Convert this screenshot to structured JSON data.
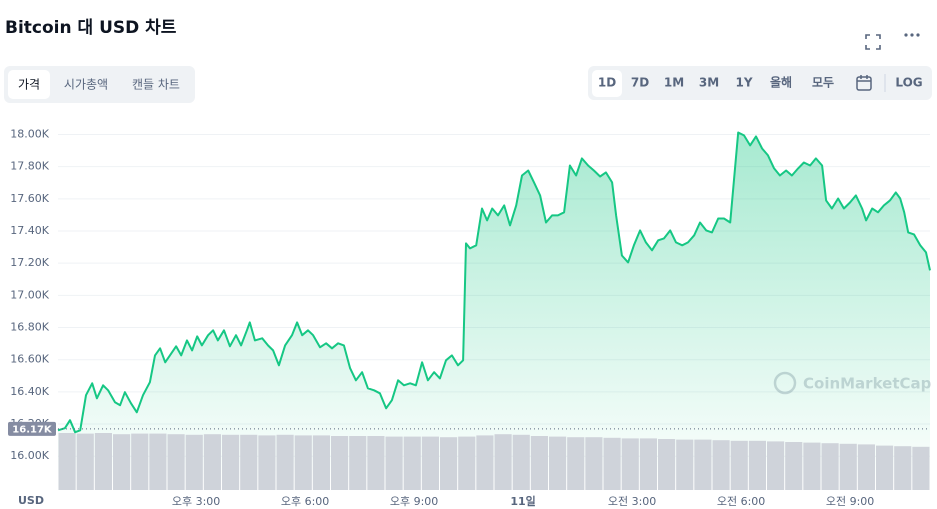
{
  "title": "Bitcoin 대 USD 차트",
  "tabs": [
    "가격",
    "시가총액",
    "캔들 차트"
  ],
  "ranges": [
    "1D",
    "7D",
    "1M",
    "3M",
    "1Y",
    "올해",
    "모두"
  ],
  "log_button": "LOG",
  "chart_data": {
    "type": "area",
    "y_axis_label": "USD",
    "watermark": "CoinMarketCap",
    "grid": true,
    "series": [
      {
        "color": "#16c784",
        "x": [
          11.2,
          11.39,
          11.53,
          11.67,
          11.81,
          11.97,
          12.14,
          12.27,
          12.44,
          12.58,
          12.77,
          12.91,
          13.04,
          13.21,
          13.37,
          13.54,
          13.73,
          13.87,
          14.01,
          14.15,
          14.28,
          14.45,
          14.59,
          14.75,
          14.89,
          15.03,
          15.16,
          15.33,
          15.47,
          15.6,
          15.77,
          15.93,
          16.1,
          16.24,
          16.4,
          16.48,
          16.62,
          16.82,
          16.98,
          17.12,
          17.28,
          17.45,
          17.64,
          17.78,
          17.92,
          18.08,
          18.22,
          18.41,
          18.58,
          18.74,
          18.91,
          19.07,
          19.24,
          19.4,
          19.57,
          19.73,
          19.9,
          20.06,
          20.23,
          20.39,
          20.56,
          20.72,
          20.89,
          21.05,
          21.22,
          21.38,
          21.55,
          21.71,
          21.88,
          22.04,
          22.21,
          22.35,
          22.43,
          22.54,
          22.71,
          22.87,
          23.01,
          23.15,
          23.31,
          23.48,
          23.64,
          23.81,
          23.97,
          24.14,
          24.3,
          24.47,
          24.63,
          24.8,
          24.96,
          25.13,
          25.29,
          25.46,
          25.62,
          25.79,
          25.95,
          26.12,
          26.28,
          26.45,
          26.56,
          26.72,
          26.89,
          27.05,
          27.22,
          27.38,
          27.55,
          27.72,
          27.88,
          28.05,
          28.21,
          28.38,
          28.54,
          28.71,
          28.87,
          29.04,
          29.2,
          29.37,
          29.53,
          29.7,
          29.92,
          30.08,
          30.25,
          30.41,
          30.58,
          30.74,
          30.91,
          31.07,
          31.24,
          31.4,
          31.57,
          31.73,
          31.9,
          32.06,
          32.23,
          32.34,
          32.5,
          32.67,
          32.83,
          33.0,
          33.16,
          33.33,
          33.44,
          33.61,
          33.77,
          33.93,
          34.1,
          34.26,
          34.38,
          34.49,
          34.6,
          34.76,
          34.93,
          35.09,
          35.2
        ],
        "values": [
          16161,
          16174,
          16224,
          16149,
          16161,
          16379,
          16453,
          16360,
          16441,
          16410,
          16335,
          16317,
          16398,
          16329,
          16273,
          16379,
          16460,
          16627,
          16671,
          16584,
          16627,
          16683,
          16627,
          16720,
          16658,
          16745,
          16689,
          16752,
          16783,
          16720,
          16783,
          16683,
          16752,
          16689,
          16783,
          16832,
          16720,
          16733,
          16689,
          16658,
          16565,
          16689,
          16752,
          16832,
          16752,
          16783,
          16752,
          16677,
          16702,
          16671,
          16702,
          16689,
          16547,
          16472,
          16522,
          16422,
          16410,
          16391,
          16298,
          16348,
          16472,
          16441,
          16453,
          16441,
          16584,
          16472,
          16522,
          16484,
          16596,
          16627,
          16565,
          16596,
          17323,
          17292,
          17311,
          17540,
          17466,
          17540,
          17497,
          17559,
          17435,
          17559,
          17745,
          17776,
          17702,
          17621,
          17453,
          17497,
          17497,
          17516,
          17807,
          17745,
          17851,
          17807,
          17776,
          17739,
          17764,
          17702,
          17497,
          17248,
          17205,
          17311,
          17404,
          17329,
          17280,
          17342,
          17354,
          17404,
          17329,
          17311,
          17329,
          17373,
          17453,
          17404,
          17391,
          17478,
          17478,
          17453,
          18012,
          17994,
          17932,
          17988,
          17913,
          17870,
          17789,
          17745,
          17776,
          17745,
          17789,
          17826,
          17807,
          17851,
          17807,
          17590,
          17540,
          17602,
          17540,
          17578,
          17621,
          17540,
          17466,
          17540,
          17516,
          17559,
          17590,
          17640,
          17602,
          17516,
          17391,
          17379,
          17311,
          17267,
          17155
        ]
      }
    ],
    "xlim": [
      11.2,
      35.2
    ],
    "xticks": [
      {
        "value": 15,
        "label": "오후 3:00"
      },
      {
        "value": 18,
        "label": "오후 6:00"
      },
      {
        "value": 21,
        "label": "오후 9:00"
      },
      {
        "value": 24,
        "label": "11일"
      },
      {
        "value": 27,
        "label": "오전 3:00"
      },
      {
        "value": 30,
        "label": "오전 6:00"
      },
      {
        "value": 33,
        "label": "오전 9:00"
      }
    ],
    "ylim": [
      15790,
      18090
    ],
    "yticks": [
      {
        "value": 16000,
        "label": "16.00K"
      },
      {
        "value": 16200,
        "label": "16.20K"
      },
      {
        "value": 16400,
        "label": "16.40K"
      },
      {
        "value": 16600,
        "label": "16.60K"
      },
      {
        "value": 16800,
        "label": "16.80K"
      },
      {
        "value": 17000,
        "label": "17.00K"
      },
      {
        "value": 17200,
        "label": "17.20K"
      },
      {
        "value": 17400,
        "label": "17.40K"
      },
      {
        "value": 17600,
        "label": "17.60K"
      },
      {
        "value": 17800,
        "label": "17.80K"
      },
      {
        "value": 18000,
        "label": "18.00K"
      }
    ],
    "reference": {
      "value": 16170,
      "label": "16.17K"
    },
    "volume": {
      "color": "#cfd3da",
      "ylim": [
        0,
        100
      ],
      "values": [
        95,
        94,
        95,
        93,
        94,
        94,
        93,
        92,
        93,
        92,
        92,
        91,
        92,
        91,
        91,
        90,
        90,
        90,
        89,
        89,
        89,
        88,
        89,
        91,
        93,
        92,
        90,
        89,
        88,
        88,
        87,
        86,
        86,
        85,
        84,
        84,
        83,
        82,
        82,
        81,
        80,
        79,
        78,
        77,
        76,
        74,
        73,
        72
      ]
    }
  }
}
